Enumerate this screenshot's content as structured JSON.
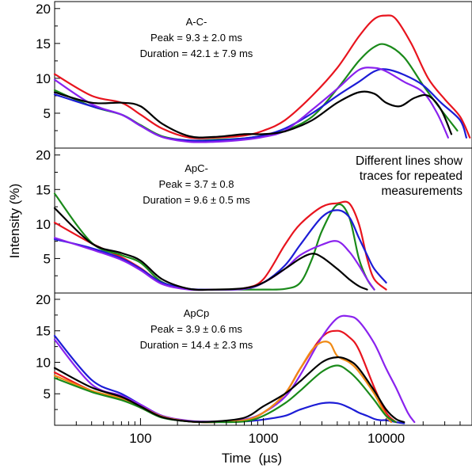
{
  "chart_data": {
    "type": "line",
    "x_scale": "log",
    "xlim": [
      20,
      50000
    ],
    "xlabel": "Time  (µs)",
    "ylabel": "Intensity (%)",
    "x_ticks": [
      "100",
      "1000",
      "10000"
    ],
    "x_tick_values": [
      100,
      1000,
      10000
    ],
    "y_ticks": [
      "5",
      "10",
      "15",
      "20"
    ],
    "y_tick_values": [
      5,
      10,
      15,
      20
    ],
    "ylim": [
      0,
      21
    ],
    "grid": false,
    "legend": null,
    "note_lines": [
      "Different lines show",
      "traces for repeated",
      "measurements"
    ],
    "colors": {
      "black": "#000000",
      "red": "#e8141e",
      "green": "#1a8a1a",
      "blue": "#1c1cd6",
      "purple": "#8a22ee",
      "orange": "#f08a14"
    },
    "panels": [
      {
        "title": "A-C-",
        "peak": "Peak = 9.3 ± 2.0 ms",
        "duration": "Duration = 42.1 ± 7.9 ms",
        "series": [
          {
            "color": "red",
            "x": [
              20,
              40,
              70,
              100,
              150,
              250,
              400,
              700,
              1000,
              1500,
              2500,
              4000,
              6000,
              8000,
              10000,
              12000,
              16000,
              22000,
              30000,
              40000,
              48000
            ],
            "y": [
              10.6,
              7.5,
              6.5,
              4.8,
              2.8,
              1.5,
              1.5,
              1.8,
              2.5,
              4,
              7.5,
              11.5,
              16,
              18.5,
              19,
              18.5,
              15,
              10,
              7,
              4.5,
              1.5
            ]
          },
          {
            "color": "green",
            "x": [
              20,
              40,
              70,
              100,
              150,
              250,
              400,
              700,
              1000,
              1500,
              2500,
              4000,
              6000,
              8000,
              10000,
              14000,
              20000,
              28000,
              38000
            ],
            "y": [
              8.3,
              6,
              4.8,
              3.3,
              1.7,
              1.1,
              1.2,
              1.4,
              1.8,
              2.5,
              4.5,
              8.5,
              12.5,
              14.5,
              14.8,
              13,
              9,
              5.5,
              2.5
            ]
          },
          {
            "color": "blue",
            "x": [
              20,
              40,
              70,
              100,
              150,
              250,
              400,
              700,
              1000,
              1500,
              2500,
              4000,
              6000,
              8000,
              10000,
              14000,
              20000,
              28000,
              40000,
              45000
            ],
            "y": [
              7.7,
              6,
              4.8,
              3.2,
              1.6,
              1.1,
              1.1,
              1.4,
              1.8,
              2.8,
              5,
              7.5,
              9.5,
              11,
              11.3,
              10.5,
              9,
              6.5,
              4,
              1.5
            ]
          },
          {
            "color": "purple",
            "x": [
              20,
              40,
              70,
              100,
              150,
              250,
              400,
              700,
              1000,
              1500,
              2500,
              4000,
              6000,
              8000,
              10000,
              14000,
              20000,
              26000,
              32000
            ],
            "y": [
              9.8,
              6.3,
              4.8,
              3.2,
              1.6,
              0.9,
              0.9,
              1.2,
              1.6,
              2.5,
              5.5,
              8.5,
              11.2,
              11.5,
              11,
              9.5,
              8,
              5,
              1.5
            ]
          },
          {
            "color": "black",
            "x": [
              20,
              40,
              70,
              100,
              150,
              250,
              400,
              700,
              1000,
              1500,
              2500,
              4000,
              6000,
              8000,
              10000,
              13000,
              17000,
              22000,
              28000,
              34000
            ],
            "y": [
              8,
              6.5,
              6.5,
              6,
              3.5,
              1.7,
              1.6,
              2,
              2,
              2.4,
              4,
              6.5,
              8,
              7.8,
              6.5,
              6,
              7.2,
              7.5,
              5.5,
              2
            ]
          }
        ]
      },
      {
        "title": "ApC-",
        "peak": "Peak = 3.7 ± 0.8",
        "duration": "Duration = 9.6 ± 0.5 ms",
        "series": [
          {
            "color": "red",
            "x": [
              20,
              40,
              70,
              100,
              150,
              250,
              400,
              700,
              1000,
              1500,
              2000,
              3000,
              4000,
              5000,
              6000,
              7000,
              8000,
              10000
            ],
            "y": [
              10.2,
              7.2,
              5.2,
              3.6,
              1.5,
              0.6,
              0.5,
              0.7,
              2,
              7,
              10,
              12.5,
              13,
              13,
              10,
              5,
              2,
              0.5
            ]
          },
          {
            "color": "green",
            "x": [
              20,
              40,
              70,
              100,
              150,
              250,
              400,
              700,
              1000,
              1500,
              2000,
              2500,
              3000,
              4000,
              5000,
              6000,
              7000,
              8000
            ],
            "y": [
              14.4,
              7.3,
              5.5,
              4.4,
              1.6,
              0.6,
              0.5,
              0.5,
              0.5,
              0.6,
              1.5,
              5,
              9,
              12.8,
              11,
              5,
              2,
              0.5
            ]
          },
          {
            "color": "blue",
            "x": [
              20,
              40,
              70,
              100,
              150,
              250,
              400,
              700,
              1000,
              1500,
              2000,
              3000,
              4000,
              5000,
              6000,
              7000,
              8000,
              10000
            ],
            "y": [
              7.8,
              6.5,
              5,
              3.5,
              1.5,
              0.6,
              0.5,
              0.6,
              1.5,
              4,
              7,
              11,
              12,
              11,
              8,
              5.5,
              3.5,
              1.5
            ]
          },
          {
            "color": "purple",
            "x": [
              20,
              40,
              70,
              100,
              150,
              250,
              400,
              700,
              1000,
              1500,
              2000,
              3000,
              4000,
              5000,
              6000,
              7000,
              8000
            ],
            "y": [
              8,
              6.3,
              4.8,
              3.3,
              1.3,
              0.5,
              0.5,
              0.6,
              1.5,
              3.5,
              5.5,
              7,
              7.5,
              6,
              4,
              2,
              0.5
            ]
          },
          {
            "color": "black",
            "x": [
              20,
              40,
              70,
              100,
              150,
              250,
              400,
              700,
              1000,
              1500,
              2000,
              2500,
              3000,
              4000,
              5000,
              6000,
              7000
            ],
            "y": [
              12.3,
              7.2,
              5.8,
              4.7,
              2,
              0.6,
              0.5,
              0.7,
              1.5,
              3.5,
              5,
              5.7,
              5.2,
              3.5,
              2,
              1,
              0.5
            ]
          }
        ]
      },
      {
        "title": "ApCp",
        "peak": "Peak = 3.9 ± 0.6 ms",
        "duration": "Duration = 14.4 ± 2.3 ms",
        "series": [
          {
            "color": "blue",
            "x": [
              20,
              40,
              70,
              100,
              150,
              250,
              400,
              700,
              1000,
              1500,
              2000,
              3000,
              4000,
              5000,
              6000,
              7000,
              8000,
              9000,
              10000,
              12000,
              14000
            ],
            "y": [
              14.2,
              7.2,
              5,
              3.3,
              1.5,
              0.6,
              0.5,
              0.6,
              0.9,
              1.5,
              2.5,
              3.5,
              3.5,
              2.8,
              2,
              1.5,
              1,
              0.8,
              0.8,
              0.5,
              0.3
            ]
          },
          {
            "color": "red",
            "x": [
              20,
              40,
              70,
              100,
              150,
              250,
              400,
              700,
              1000,
              1500,
              2000,
              3000,
              4000,
              5000,
              6000,
              8000,
              10000,
              12000
            ],
            "y": [
              8.4,
              5.5,
              4.2,
              2.8,
              1.3,
              0.6,
              0.5,
              0.8,
              2,
              5,
              9,
              14,
              15,
              14,
              12,
              6,
              2,
              0.5
            ]
          },
          {
            "color": "purple",
            "x": [
              20,
              40,
              70,
              100,
              150,
              250,
              400,
              700,
              1000,
              1500,
              2000,
              3000,
              4000,
              5000,
              6000,
              8000,
              10000,
              12000,
              15000,
              17000
            ],
            "y": [
              13.6,
              6.5,
              4.7,
              3.3,
              1.5,
              0.7,
              0.6,
              0.9,
              2,
              4.5,
              8,
              14,
              17,
              17.3,
              16.5,
              13,
              9,
              6,
              2,
              0.5
            ]
          },
          {
            "color": "orange",
            "x": [
              20,
              40,
              70,
              100,
              150,
              250,
              400,
              700,
              1000,
              1500,
              2000,
              2500,
              3000,
              3500,
              4000,
              5000,
              6000,
              8000,
              10000,
              11000
            ],
            "y": [
              7.9,
              5.5,
              4.3,
              3,
              1.4,
              0.6,
              0.5,
              0.8,
              2,
              5,
              9,
              12,
              13.2,
              13,
              11,
              10,
              8.5,
              5,
              1.5,
              0.5
            ]
          },
          {
            "color": "green",
            "x": [
              20,
              40,
              70,
              100,
              150,
              250,
              400,
              700,
              1000,
              1500,
              2000,
              3000,
              4000,
              5000,
              6000,
              8000,
              10000,
              12000
            ],
            "y": [
              7.5,
              5.3,
              4,
              2.8,
              1.2,
              0.6,
              0.5,
              0.6,
              1.5,
              3.5,
              5.5,
              8.5,
              9.5,
              8.5,
              7,
              4,
              1.5,
              0.5
            ]
          },
          {
            "color": "black",
            "x": [
              20,
              40,
              70,
              100,
              150,
              250,
              400,
              700,
              1000,
              1500,
              2000,
              3000,
              4000,
              5000,
              6000,
              8000,
              10000,
              12000,
              14000
            ],
            "y": [
              9.1,
              6,
              4.5,
              3,
              1.3,
              0.6,
              0.6,
              1.2,
              3,
              5,
              7,
              10,
              10.8,
              10.3,
              9,
              5.5,
              2.5,
              1,
              0.5
            ]
          }
        ]
      }
    ]
  }
}
